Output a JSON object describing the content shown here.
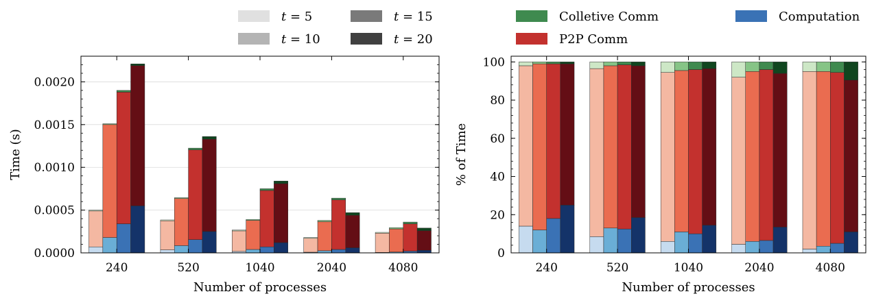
{
  "chart_data": [
    {
      "type": "bar",
      "stacked": true,
      "grouped_by": "t",
      "xlabel": "Number of processes",
      "ylabel": "Time (s)",
      "categories": [
        "240",
        "520",
        "1040",
        "2040",
        "4080"
      ],
      "group_values": [
        5,
        10,
        15,
        20
      ],
      "ylim": [
        0,
        0.0023
      ],
      "yticks": [
        "0.0000",
        "0.0005",
        "0.0010",
        "0.0015",
        "0.0020"
      ],
      "grid": "horizontal",
      "legend_position": "top-center",
      "legend": [
        {
          "var": "t",
          "value": "5",
          "color": "#e0e0e0"
        },
        {
          "var": "t",
          "value": "10",
          "color": "#b4b4b4"
        },
        {
          "var": "t",
          "value": "15",
          "color": "#7a7a7a"
        },
        {
          "var": "t",
          "value": "20",
          "color": "#404040"
        }
      ],
      "series": [
        {
          "name": "Computation",
          "values": [
            [
              7e-05,
              0.00018,
              0.00034,
              0.00055
            ],
            [
              3.5e-05,
              8.5e-05,
              0.000155,
              0.00025
            ],
            [
              1.7e-05,
              4e-05,
              7e-05,
              0.00012
            ],
            [
              8e-06,
              2.5e-05,
              4e-05,
              6e-05
            ],
            [
              5e-06,
              1e-05,
              2e-05,
              3e-05
            ]
          ]
        },
        {
          "name": "P2P Comm",
          "values": [
            [
              0.00042,
              0.00132,
              0.00154,
              0.00164
            ],
            [
              0.00034,
              0.00055,
              0.00105,
              0.00108
            ],
            [
              0.00024,
              0.00034,
              0.00066,
              0.00069
            ],
            [
              0.000162,
              0.00034,
              0.00058,
              0.00038
            ],
            [
              0.000225,
              0.00027,
              0.00032,
              0.00023
            ]
          ]
        },
        {
          "name": "Colletive Comm",
          "values": [
            [
              1e-05,
              1e-05,
              2e-05,
              2e-05
            ],
            [
              1e-05,
              1e-05,
              2e-05,
              3e-05
            ],
            [
              1e-05,
              1e-05,
              2e-05,
              3e-05
            ],
            [
              1e-05,
              1.5e-05,
              2e-05,
              3e-05
            ],
            [
              1e-05,
              1.5e-05,
              2e-05,
              3e-05
            ]
          ]
        }
      ]
    },
    {
      "type": "bar",
      "stacked": true,
      "xlabel": "Number of processes",
      "ylabel": "% of Time",
      "categories": [
        "240",
        "520",
        "1040",
        "2040",
        "4080"
      ],
      "ylim": [
        0,
        103
      ],
      "yticks": [
        "0",
        "20",
        "40",
        "60",
        "80",
        "100"
      ],
      "legend_position": "top-center",
      "legend": [
        {
          "name": "Colletive Comm",
          "color": "#3f8a4f"
        },
        {
          "name": "Computation",
          "color": "#3a72b5"
        },
        {
          "name": "P2P Comm",
          "color": "#c3312e"
        }
      ],
      "series": [
        {
          "name": "Computation",
          "values": [
            [
              14,
              12,
              18,
              25
            ],
            [
              8.5,
              13,
              12.5,
              18.5
            ],
            [
              6,
              11,
              10,
              14.5
            ],
            [
              4.5,
              6,
              6.5,
              13.5
            ],
            [
              2,
              3.5,
              5,
              11
            ]
          ]
        },
        {
          "name": "P2P Comm",
          "values": [
            [
              84,
              87,
              81,
              74
            ],
            [
              88,
              85,
              86,
              79.5
            ],
            [
              88.5,
              84.5,
              86,
              82
            ],
            [
              87.5,
              89,
              89.5,
              80.5
            ],
            [
              93,
              91.5,
              89.5,
              79.5
            ]
          ]
        },
        {
          "name": "Colletive Comm",
          "values": [
            [
              2,
              1,
              1,
              1
            ],
            [
              3.5,
              2,
              1.5,
              2
            ],
            [
              5.5,
              4.5,
              4,
              3.5
            ],
            [
              8,
              5,
              4,
              6
            ],
            [
              5,
              5,
              5.5,
              9.5
            ]
          ]
        }
      ]
    }
  ]
}
